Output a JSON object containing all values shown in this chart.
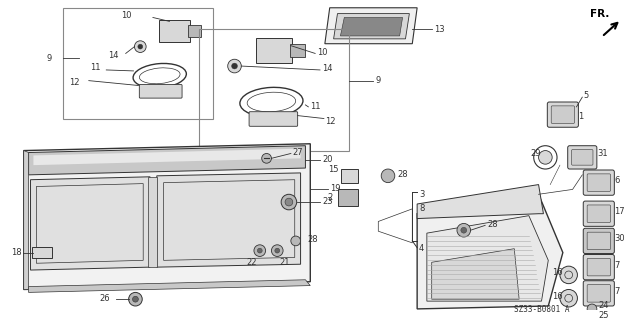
{
  "bg_color": "#ffffff",
  "diagram_code": "SZ33-B0801 A",
  "figsize": [
    6.4,
    3.19
  ],
  "dpi": 100,
  "line_color": "#333333",
  "part_fill": "#d8d8d8",
  "part_fill2": "#b8b8b8",
  "label_fs": 6.0
}
